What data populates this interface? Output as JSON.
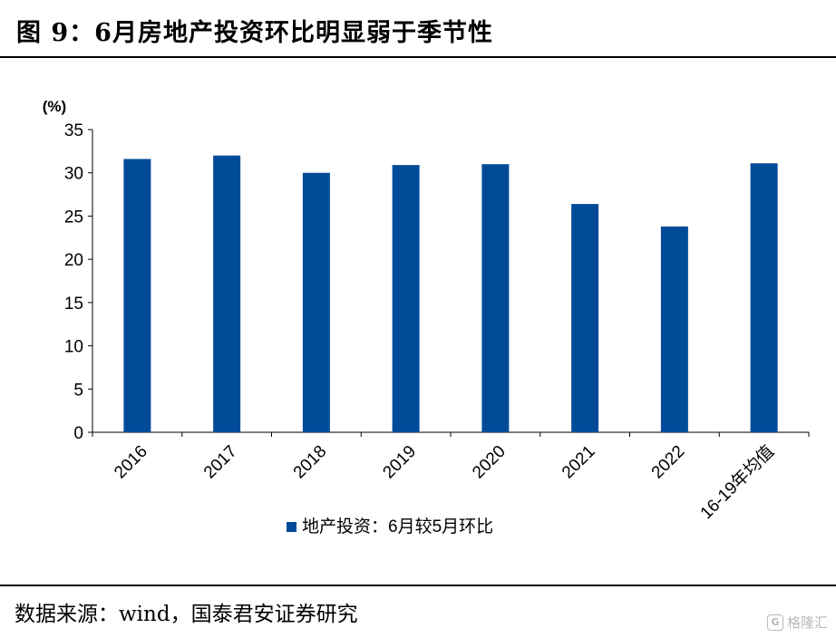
{
  "title": "图 9：6月房地产投资环比明显弱于季节性",
  "source": "数据来源：wind，国泰君安证券研究",
  "watermark": {
    "text": "格隆汇",
    "icon": "G"
  },
  "colors": {
    "bar": "#004b98"
  },
  "chart_data": {
    "type": "bar",
    "unit_label": "(%)",
    "categories": [
      "2016",
      "2017",
      "2018",
      "2019",
      "2020",
      "2021",
      "2022",
      "16-19年均值"
    ],
    "series": [
      {
        "name": "地产投资：6月较5月环比",
        "values": [
          31.6,
          32.0,
          30.0,
          30.9,
          31.0,
          26.4,
          23.8,
          31.1
        ]
      }
    ],
    "ylim": [
      0,
      35
    ],
    "yticks": [
      0,
      5,
      10,
      15,
      20,
      25,
      30,
      35
    ],
    "grid": false,
    "legend_position": "bottom"
  }
}
